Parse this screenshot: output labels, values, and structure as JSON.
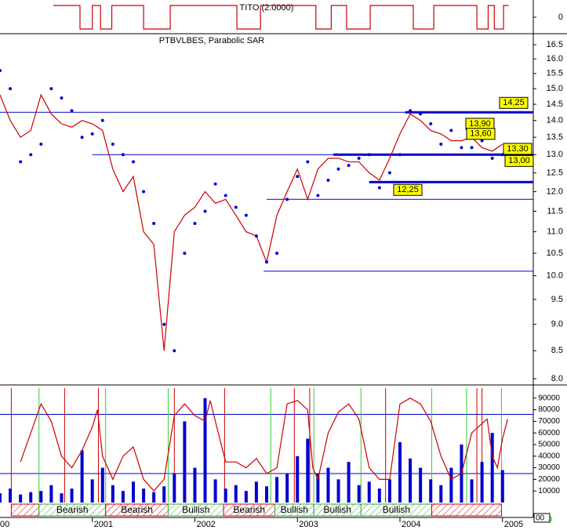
{
  "chart_data": [
    {
      "type": "step",
      "title": "TITO (2.0000)",
      "xlim": [
        2000.1,
        2005.3
      ],
      "ylim": [
        -1.2,
        1.2
      ],
      "yticks": [
        0
      ],
      "x": [
        2000.62,
        2000.84,
        2000.88,
        2000.96,
        2001.0,
        2001.04,
        2001.08,
        2001.15,
        2001.19,
        2001.46,
        2001.5,
        2001.72,
        2001.76,
        2002.37,
        2002.41,
        2002.6,
        2002.64,
        2003.14,
        2003.18,
        2003.29,
        2003.33,
        2003.44,
        2003.48,
        2003.67,
        2003.71,
        2004.09,
        2004.13,
        2004.29,
        2004.33,
        2004.71,
        2004.75,
        2004.82,
        2004.86,
        2004.88,
        2004.92,
        2004.97,
        2005.01,
        2005.06
      ],
      "series": [
        {
          "color": "#cc0000",
          "values": [
            1,
            1,
            -1,
            -1,
            1,
            1,
            -1,
            -1,
            1,
            1,
            -1,
            -1,
            1,
            1,
            -1,
            -1,
            1,
            1,
            -1,
            -1,
            1,
            1,
            -1,
            -1,
            1,
            1,
            -1,
            -1,
            1,
            1,
            -1,
            -1,
            1,
            1,
            -1,
            -1,
            1,
            1
          ]
        }
      ]
    },
    {
      "type": "price",
      "title": "PTBVLBES, Parabolic SAR",
      "xlim": [
        2000.1,
        2005.3
      ],
      "ylim": [
        8,
        16.5
      ],
      "log": true,
      "yticks": [
        16.5,
        {
          "value": 16,
          "label": "16.0"
        },
        15.5,
        {
          "value": 15,
          "label": "15.0"
        },
        14.5,
        {
          "value": 14,
          "label": "14.0"
        },
        13.5,
        {
          "value": 13,
          "label": "13.0"
        },
        12.5,
        {
          "value": 12,
          "label": "12.0"
        },
        11.5,
        {
          "value": 11,
          "label": "11.0"
        },
        10.5,
        {
          "value": 10,
          "label": "10.0"
        },
        9.5,
        {
          "value": 9,
          "label": "9.0"
        },
        8.5,
        {
          "value": 8,
          "label": "8.0"
        }
      ],
      "x": [
        2000.1,
        2000.2,
        2000.3,
        2000.4,
        2000.5,
        2000.6,
        2000.7,
        2000.8,
        2000.9,
        2001.0,
        2001.1,
        2001.2,
        2001.3,
        2001.4,
        2001.5,
        2001.6,
        2001.7,
        2001.8,
        2001.9,
        2002.0,
        2002.1,
        2002.2,
        2002.3,
        2002.4,
        2002.5,
        2002.6,
        2002.7,
        2002.8,
        2002.9,
        2003.0,
        2003.1,
        2003.2,
        2003.3,
        2003.4,
        2003.5,
        2003.6,
        2003.7,
        2003.8,
        2003.9,
        2004.0,
        2004.1,
        2004.2,
        2004.3,
        2004.4,
        2004.5,
        2004.6,
        2004.7,
        2004.8,
        2004.9,
        2005.0
      ],
      "series": [
        {
          "color": "#cc0000",
          "style": "line",
          "values": [
            14.8,
            14.0,
            13.5,
            13.7,
            14.8,
            14.2,
            13.9,
            13.8,
            14.0,
            13.9,
            13.7,
            12.6,
            12.0,
            12.4,
            11.0,
            10.7,
            8.5,
            11.0,
            11.4,
            11.6,
            12.0,
            11.7,
            11.8,
            11.4,
            11.0,
            10.9,
            10.3,
            11.4,
            12.0,
            12.6,
            11.8,
            12.6,
            12.9,
            12.9,
            12.8,
            12.8,
            12.5,
            12.3,
            12.9,
            13.6,
            14.2,
            14.0,
            13.7,
            13.6,
            13.4,
            13.4,
            13.5,
            13.2,
            13.1,
            13.3
          ]
        },
        {
          "color": "#0000dd",
          "style": "dots",
          "values": [
            15.6,
            15.0,
            12.8,
            13.0,
            13.3,
            15.0,
            14.7,
            14.3,
            13.5,
            13.6,
            14.0,
            13.3,
            13.0,
            12.8,
            12.0,
            11.2,
            9.0,
            8.5,
            10.5,
            11.2,
            11.5,
            12.2,
            11.9,
            11.6,
            11.4,
            10.9,
            10.3,
            10.5,
            11.8,
            12.4,
            12.8,
            11.9,
            12.3,
            12.6,
            12.7,
            12.9,
            13.0,
            12.1,
            12.5,
            13.0,
            14.3,
            14.2,
            13.9,
            13.3,
            13.7,
            13.2,
            13.2,
            13.4,
            12.9,
            13.0
          ]
        }
      ],
      "levels": [
        {
          "value": 14.25,
          "from": 2000.1,
          "thick": false
        },
        {
          "value": 13,
          "from": 2001.0,
          "thick": false
        },
        {
          "value": 11.8,
          "from": 2002.7,
          "thick": false
        },
        {
          "value": 10.1,
          "from": 2002.67,
          "thick": false
        },
        {
          "value": 13,
          "from": 2003.35,
          "thick": true
        },
        {
          "value": 12.25,
          "from": 2003.7,
          "thick": true
        },
        {
          "value": 14.25,
          "from": 2004.05,
          "thick": true
        }
      ],
      "level_color": "#0000cc",
      "level_labels": [
        {
          "value": 14.25,
          "label": "14,25"
        },
        {
          "value": 13.9,
          "label": "13,90"
        },
        {
          "value": 13.6,
          "label": "13,60"
        },
        {
          "value": 13.3,
          "label": "13,30"
        },
        {
          "value": 13,
          "label": "13,00"
        },
        {
          "value": 12.25,
          "label": "12,25"
        }
      ]
    },
    {
      "type": "volume",
      "xlim": [
        2000.1,
        2005.3
      ],
      "ylim": [
        0,
        100000
      ],
      "yticks": [
        10000,
        20000,
        30000,
        40000,
        50000,
        60000,
        70000,
        80000,
        90000
      ],
      "x_start_label": "00",
      "corner_label": "00",
      "xticks": [
        2001,
        2002,
        2003,
        2004,
        2005
      ],
      "x": [
        2000.1,
        2000.2,
        2000.3,
        2000.4,
        2000.5,
        2000.6,
        2000.7,
        2000.8,
        2000.9,
        2001.0,
        2001.1,
        2001.2,
        2001.3,
        2001.4,
        2001.5,
        2001.6,
        2001.7,
        2001.8,
        2001.9,
        2002.0,
        2002.1,
        2002.2,
        2002.3,
        2002.4,
        2002.5,
        2002.6,
        2002.7,
        2002.8,
        2002.9,
        2003.0,
        2003.1,
        2003.2,
        2003.3,
        2003.4,
        2003.5,
        2003.6,
        2003.7,
        2003.8,
        2003.9,
        2004.0,
        2004.1,
        2004.2,
        2004.3,
        2004.4,
        2004.5,
        2004.6,
        2004.7,
        2004.8,
        2004.9,
        2005.0
      ],
      "values": [
        8000,
        12000,
        7000,
        9000,
        10000,
        15000,
        8000,
        12000,
        45000,
        20000,
        30000,
        15000,
        10000,
        18000,
        12000,
        9000,
        14000,
        25000,
        70000,
        30000,
        90000,
        20000,
        12000,
        15000,
        10000,
        18000,
        14000,
        22000,
        25000,
        40000,
        55000,
        25000,
        30000,
        20000,
        35000,
        15000,
        18000,
        12000,
        20000,
        52000,
        38000,
        30000,
        20000,
        15000,
        30000,
        50000,
        20000,
        35000,
        60000,
        28000
      ],
      "color": "#0000cc",
      "oscillator": {
        "color": "#cc0000",
        "x": [
          2000.3,
          2000.4,
          2000.5,
          2000.6,
          2000.7,
          2000.8,
          2000.9,
          2001.0,
          2001.05,
          2001.1,
          2001.2,
          2001.3,
          2001.4,
          2001.5,
          2001.6,
          2001.7,
          2001.8,
          2001.9,
          2002.0,
          2002.1,
          2002.15,
          2002.2,
          2002.3,
          2002.4,
          2002.5,
          2002.6,
          2002.7,
          2002.8,
          2002.9,
          2003.0,
          2003.1,
          2003.15,
          2003.2,
          2003.3,
          2003.4,
          2003.5,
          2003.6,
          2003.7,
          2003.8,
          2003.9,
          2004.0,
          2004.1,
          2004.2,
          2004.3,
          2004.4,
          2004.5,
          2004.6,
          2004.7,
          2004.8,
          2004.85,
          2004.9,
          2004.95,
          2005.0,
          2005.05
        ],
        "values": [
          35000,
          60000,
          85000,
          70000,
          40000,
          30000,
          45000,
          65000,
          80000,
          40000,
          20000,
          40000,
          48000,
          20000,
          10000,
          20000,
          75000,
          85000,
          75000,
          70000,
          88000,
          70000,
          35000,
          35000,
          30000,
          38000,
          25000,
          30000,
          85000,
          88000,
          80000,
          30000,
          20000,
          60000,
          78000,
          85000,
          72000,
          30000,
          20000,
          20000,
          85000,
          90000,
          85000,
          70000,
          40000,
          20000,
          25000,
          60000,
          68000,
          72000,
          40000,
          30000,
          55000,
          72000
        ]
      },
      "hlines": [
        76000,
        25000
      ],
      "hline_color": "#0000cc",
      "buy_signals": [
        2000.48,
        2001.13,
        2001.74,
        2002.74,
        2003.16,
        2003.62,
        2004.31,
        2004.65,
        2004.99
      ],
      "buy_color": "#33cc33",
      "sell_signals": [
        2000.21,
        2000.73,
        2001.06,
        2001.8,
        2002.29,
        2002.97,
        2003.12,
        2003.86,
        2004.75,
        2004.8
      ],
      "sell_color": "#cc0000",
      "regions": [
        {
          "start": 2000.21,
          "end": 2000.48,
          "color": "#cc0000"
        },
        {
          "start": 2000.48,
          "end": 2001.13,
          "color": "#33aa33",
          "label": "Bearish"
        },
        {
          "start": 2001.13,
          "end": 2001.74,
          "color": "#cc0000",
          "label": "Bearish"
        },
        {
          "start": 2001.74,
          "end": 2002.28,
          "color": "#33aa33",
          "label": "Bullish"
        },
        {
          "start": 2002.28,
          "end": 2002.78,
          "color": "#cc0000",
          "label": "Bearish"
        },
        {
          "start": 2002.78,
          "end": 2003.16,
          "color": "#33aa33",
          "label": "Bullish"
        },
        {
          "start": 2003.16,
          "end": 2003.62,
          "color": "#33aa33",
          "label": "Bullish"
        },
        {
          "start": 2003.62,
          "end": 2004.31,
          "color": "#33aa33",
          "label": "Bullish"
        },
        {
          "start": 2004.31,
          "end": 2004.99,
          "color": "#cc0000"
        }
      ]
    }
  ]
}
